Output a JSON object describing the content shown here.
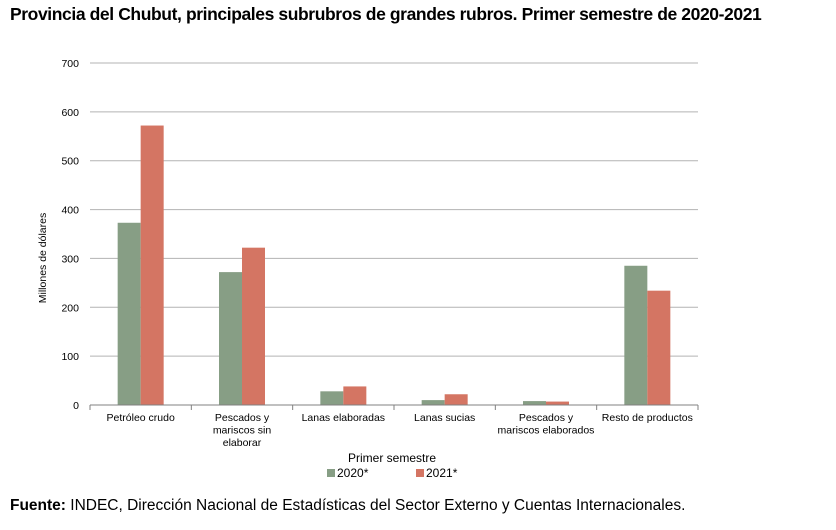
{
  "title": "Provincia del Chubut, principales subrubros de grandes rubros. Primer semestre de 2020-2021",
  "source": {
    "label": "Fuente:",
    "text": " INDEC, Dirección Nacional de Estadísticas del Sector Externo y Cuentas Internacionales."
  },
  "chart_data": {
    "type": "bar",
    "title": "",
    "xlabel": "Primer semestre",
    "ylabel": "Millones de dólares",
    "ylim": [
      0,
      700
    ],
    "yticks": [
      0,
      100,
      200,
      300,
      400,
      500,
      600,
      700
    ],
    "grid": true,
    "legend_position": "bottom",
    "categories": [
      [
        "Petróleo crudo"
      ],
      [
        "Pescados y",
        "mariscos sin",
        "elaborar"
      ],
      [
        "Lanas elaboradas"
      ],
      [
        "Lanas sucias"
      ],
      [
        "Pescados y",
        "mariscos elaborados"
      ],
      [
        "Resto de productos"
      ]
    ],
    "series": [
      {
        "name": "2020*",
        "color": "#879e85",
        "values": [
          373,
          272,
          28,
          10,
          8,
          285
        ]
      },
      {
        "name": "2021*",
        "color": "#d47563",
        "values": [
          572,
          322,
          38,
          22,
          7,
          234
        ]
      }
    ]
  }
}
